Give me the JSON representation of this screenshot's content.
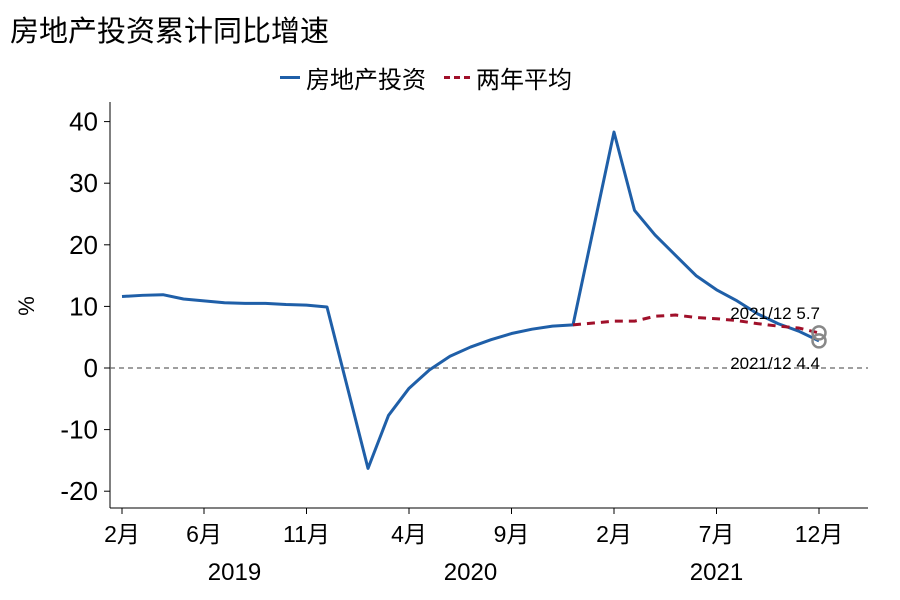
{
  "title": "房地产投资累计同比增速",
  "legend": {
    "series1": "房地产投资",
    "series2": "两年平均"
  },
  "colors": {
    "series1": "#1f5fa8",
    "series2": "#a0102a",
    "zero_line": "#666666",
    "marker": "#888888"
  },
  "chart_data": {
    "type": "line",
    "ylabel": "%",
    "ylim": [
      -23,
      46
    ],
    "yticks": [
      40,
      30,
      20,
      10,
      0,
      -10,
      -20
    ],
    "x_tick_labels": [
      "2月",
      "6月",
      "11月",
      "4月",
      "9月",
      "2月",
      "7月",
      "12月"
    ],
    "x_tick_dates": [
      "2019-02",
      "2019-06",
      "2019-11",
      "2020-04",
      "2020-09",
      "2021-02",
      "2021-07",
      "2021-12"
    ],
    "year_labels": [
      "2019",
      "2020",
      "2021"
    ],
    "series": [
      {
        "name": "房地产投资",
        "x": [
          "2019-02",
          "2019-03",
          "2019-04",
          "2019-05",
          "2019-06",
          "2019-07",
          "2019-08",
          "2019-09",
          "2019-10",
          "2019-11",
          "2019-12",
          "2020-02",
          "2020-03",
          "2020-04",
          "2020-05",
          "2020-06",
          "2020-07",
          "2020-08",
          "2020-09",
          "2020-10",
          "2020-11",
          "2020-12",
          "2021-02",
          "2021-03",
          "2021-04",
          "2021-05",
          "2021-06",
          "2021-07",
          "2021-08",
          "2021-09",
          "2021-10",
          "2021-11",
          "2021-12"
        ],
        "values": [
          11.6,
          11.8,
          11.9,
          11.2,
          10.9,
          10.6,
          10.5,
          10.5,
          10.3,
          10.2,
          9.9,
          -16.3,
          -7.7,
          -3.3,
          -0.3,
          1.9,
          3.4,
          4.6,
          5.6,
          6.3,
          6.8,
          7.0,
          38.3,
          25.6,
          21.6,
          18.3,
          15.0,
          12.7,
          10.9,
          8.8,
          7.2,
          6.0,
          4.4
        ]
      },
      {
        "name": "两年平均",
        "x": [
          "2020-12",
          "2021-02",
          "2021-03",
          "2021-04",
          "2021-05",
          "2021-06",
          "2021-07",
          "2021-08",
          "2021-09",
          "2021-10",
          "2021-11",
          "2021-12"
        ],
        "values": [
          7.0,
          7.6,
          7.6,
          8.4,
          8.6,
          8.2,
          8.0,
          7.7,
          7.2,
          6.8,
          6.5,
          5.7
        ]
      }
    ],
    "annotations": [
      {
        "text": "2021/12 5.7",
        "x": "2021-12",
        "y": 5.7
      },
      {
        "text": "2021/12 4.4",
        "x": "2021-12",
        "y": 4.4
      }
    ]
  }
}
